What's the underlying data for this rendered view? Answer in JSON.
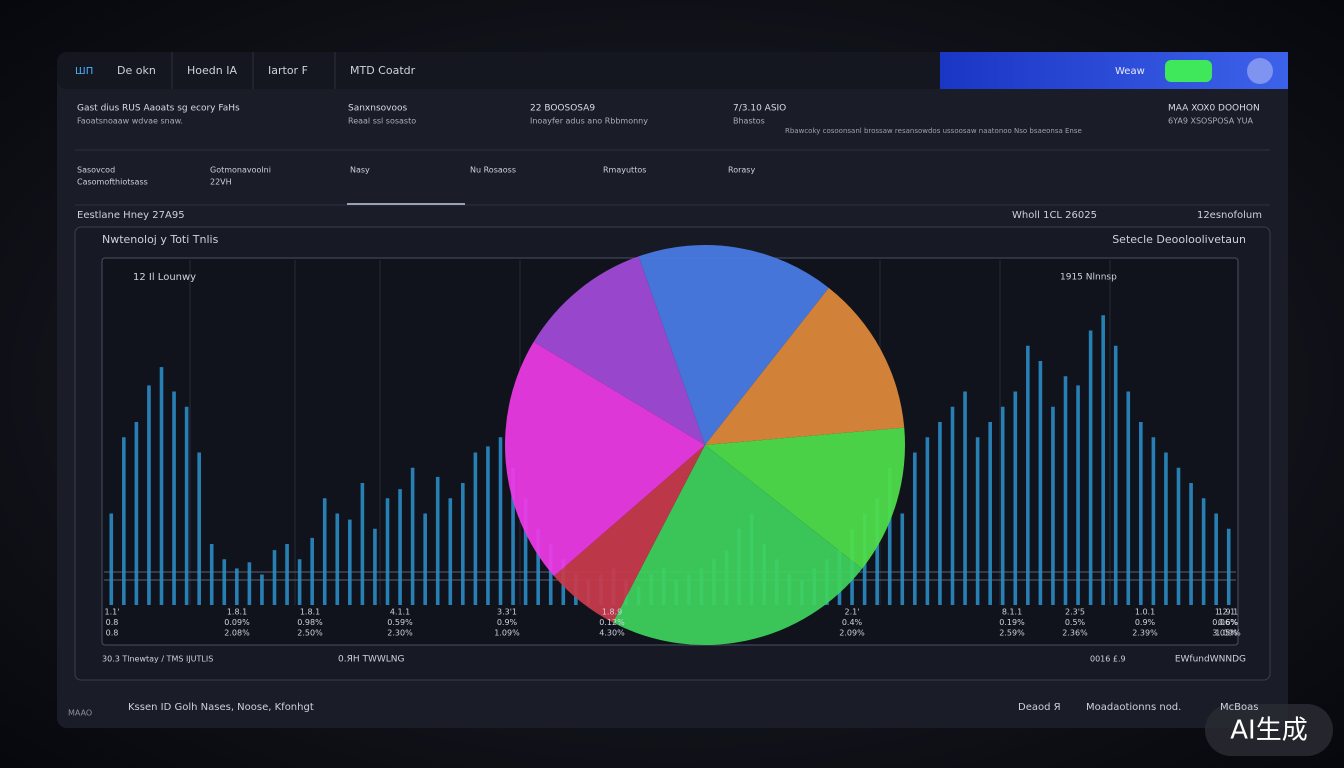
{
  "brand": "ШП",
  "tabs": [
    "Dе okn",
    "Hoedn IA",
    "Iartor F",
    "MTD  Coatdr"
  ],
  "header_right": "Weaw",
  "stats": [
    [
      "Gast dius RUS Aaoats sg  ecory FaHs",
      "Faoatsnoaaw wdvae snaw."
    ],
    [
      "Sanxnsovoos",
      "Reaal ssl sosasto"
    ],
    [
      "22 BOOSOSA9",
      "Inoayfer adus ano Rbbmonny"
    ],
    [
      "7/3.10 ASIO",
      "Bhastos"
    ],
    [
      "MAA XOX0 DOOHON",
      "6YA9 XSOSPOSA YUA"
    ]
  ],
  "status_line": "Rbawcoky cosoonsanl brossaw resansowdos ussoosaw naatonoo Nso bsaeonsa Ense",
  "subtabs": [
    [
      "Sasovcod",
      "Casomofthiotsass"
    ],
    [
      "Gotmonavoolni",
      "22VH"
    ],
    [
      "Nasy"
    ],
    [
      "Nu Rosaoss"
    ],
    [
      "Rmayuttos"
    ],
    [
      "Rorasy"
    ]
  ],
  "section": {
    "left": "Eestlane Hney 27A95",
    "mid": "Wholl 1CL 26025",
    "right": "12esnofolum"
  },
  "panel": {
    "title": "Nwtenoloj y Toti Tnlis",
    "subtitle": "Setecle Deooloolivetaun",
    "legend_left": "12 Il Lounwy",
    "legend_right": "1915 Nlnnsp",
    "axis_labels": [
      [
        "1.1'",
        "0.8",
        "0.8"
      ],
      [
        "1.8.1",
        "0.09%",
        "2.08%"
      ],
      [
        "1.8.1",
        "0.98%",
        "2.50%"
      ],
      [
        "4.1.1",
        "0.59%",
        "2.30%"
      ],
      [
        "3.3'1",
        "0.9%",
        "1.09%"
      ],
      [
        "1.8.9",
        "0.12%",
        "4.30%"
      ],
      [
        "2.1'",
        "0.4%",
        "2.09%"
      ],
      [
        "8.1.1",
        "0.19%",
        "2.59%"
      ],
      [
        "2.3'5",
        "0.5%",
        "2.36%"
      ],
      [
        "1.0.1",
        "0.9%",
        "2.39%"
      ],
      [
        "1.2.1",
        "0.06%",
        "3.05%"
      ],
      [
        "1.9.1",
        "0.6%",
        "1.09%"
      ]
    ],
    "footer_left": "30.3 Tlnewtay / TMS IJUTLIS",
    "footer_mid": "0.ЯН ТWWLNG",
    "footer_right1": "0016 £.9",
    "footer_right2": "EWfundWNNDG"
  },
  "footer": {
    "brand": "MAAO",
    "left": "Kssen ID  Golh Nases,  Noose,  Kfonhgt",
    "right1": "Deaod Я",
    "right2": "Moadaotionns nod.",
    "right3": "McBoas"
  },
  "watermark": "AI生成",
  "chart_data": [
    {
      "type": "bar",
      "color": "#2b93cf",
      "ylim": [
        0,
        100
      ],
      "values": [
        30,
        55,
        60,
        72,
        78,
        70,
        65,
        50,
        20,
        15,
        12,
        14,
        10,
        18,
        20,
        15,
        22,
        35,
        30,
        28,
        40,
        25,
        35,
        38,
        45,
        30,
        42,
        35,
        40,
        50,
        52,
        55,
        45,
        35,
        25,
        20,
        15,
        10,
        8,
        10,
        12,
        8,
        6,
        10,
        12,
        8,
        10,
        12,
        15,
        18,
        25,
        30,
        20,
        15,
        10,
        8,
        12,
        15,
        18,
        25,
        30,
        35,
        45,
        30,
        50,
        55,
        60,
        65,
        70,
        55,
        60,
        65,
        70,
        85,
        80,
        65,
        75,
        72,
        90,
        95,
        85,
        70,
        60,
        55,
        50,
        45,
        40,
        35,
        30,
        25
      ]
    },
    {
      "type": "pie",
      "values": [
        11,
        16,
        13,
        12,
        22,
        6,
        20
      ],
      "colors": [
        "#a24bd9",
        "#4a7de8",
        "#e08a3a",
        "#4fe04a",
        "#3ed35c",
        "#c93a4a",
        "#ee3ae6"
      ]
    }
  ]
}
